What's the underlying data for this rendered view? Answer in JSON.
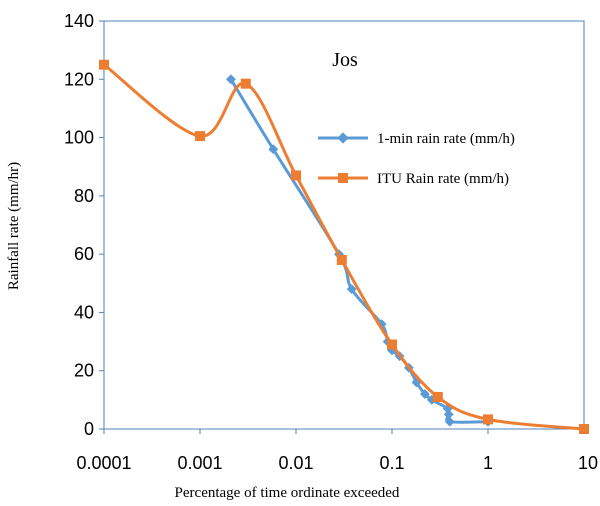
{
  "chart_data": {
    "type": "line",
    "title": "Jos",
    "xlabel": "Percentage of time ordinate exceeded",
    "ylabel": "Rainfall rate (mm/hr)",
    "x_scale": "log",
    "xlim": [
      0.0001,
      10
    ],
    "ylim": [
      0,
      140
    ],
    "x_ticks": [
      0.0001,
      0.001,
      0.01,
      0.1,
      1,
      10
    ],
    "x_tick_labels": [
      "0.0001",
      "0.001",
      "0.01",
      "0.1",
      "1",
      "10"
    ],
    "y_ticks": [
      0,
      20,
      40,
      60,
      80,
      100,
      120,
      140
    ],
    "y_tick_labels": [
      "0",
      "20",
      "40",
      "60",
      "80",
      "100",
      "120",
      "140"
    ],
    "grid": false,
    "legend_position": "right",
    "series": [
      {
        "name": "1-min rain rate (mm/h)",
        "color": "#5B9BD5",
        "marker": "diamond",
        "x": [
          0.0021,
          0.0058,
          0.028,
          0.038,
          0.078,
          0.09,
          0.1,
          0.12,
          0.15,
          0.18,
          0.22,
          0.26,
          0.38,
          0.39,
          0.4,
          1.0
        ],
        "y": [
          120,
          96,
          60,
          48,
          36,
          30,
          27,
          25,
          21,
          16,
          12,
          10,
          7,
          5,
          2.5,
          2.5
        ]
      },
      {
        "name": "ITU Rain rate (mm/h)",
        "color": "#ED7D31",
        "marker": "square",
        "x": [
          0.0001,
          0.001,
          0.003,
          0.01,
          0.03,
          0.1,
          0.3,
          1,
          10
        ],
        "y": [
          125,
          100.5,
          118.5,
          87,
          58,
          29,
          11,
          3.3,
          0
        ]
      }
    ]
  }
}
